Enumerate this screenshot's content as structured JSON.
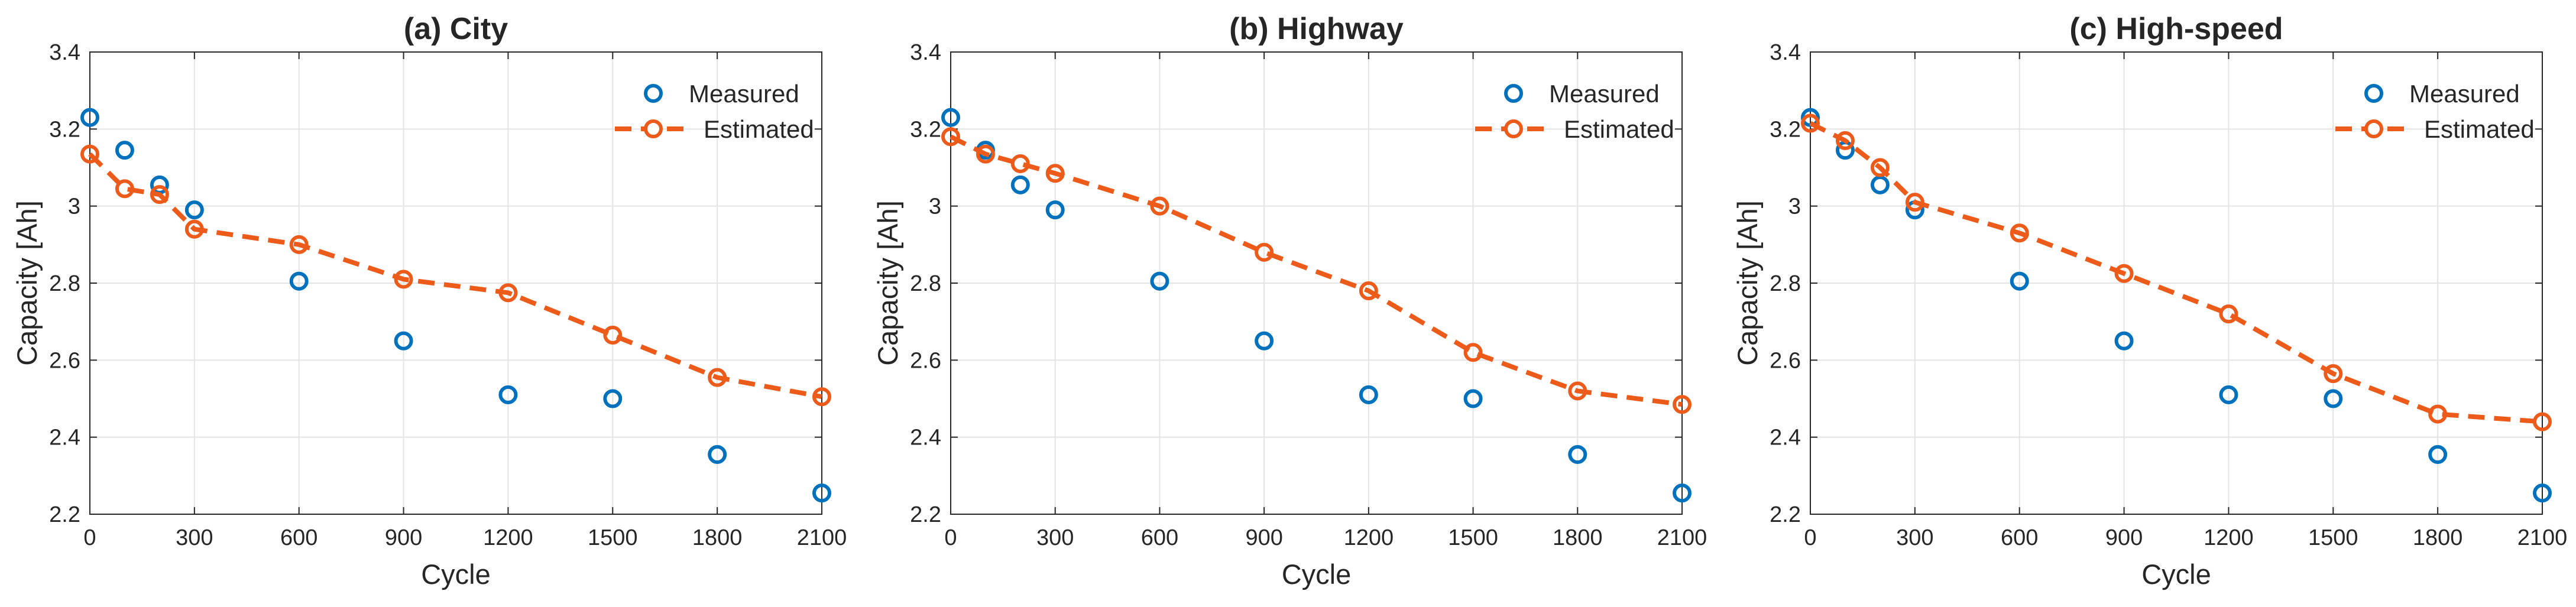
{
  "chart_data": [
    {
      "type": "line",
      "title": "(a) City",
      "xlabel": "Cycle",
      "ylabel": "Capacity [Ah]",
      "xlim": [
        0,
        2100
      ],
      "ylim": [
        2.2,
        3.4
      ],
      "xticks": [
        0,
        300,
        600,
        900,
        1200,
        1500,
        1800,
        2100
      ],
      "yticks": [
        2.2,
        2.4,
        2.6,
        2.8,
        3,
        3.2,
        3.4
      ],
      "xtick_labels": [
        "0",
        "300",
        "600",
        "900",
        "1200",
        "1500",
        "1800",
        "2100"
      ],
      "ytick_labels": [
        "2.2",
        "2.4",
        "2.6",
        "2.8",
        "3",
        "3.2",
        "3.4"
      ],
      "grid": true,
      "legend_position": "top-right",
      "series": [
        {
          "name": "Measured",
          "style": "markers",
          "color": "#0072BD",
          "x": [
            0,
            100,
            200,
            300,
            600,
            900,
            1200,
            1500,
            1800,
            2100
          ],
          "y": [
            3.23,
            3.145,
            3.055,
            2.99,
            2.805,
            2.65,
            2.51,
            2.5,
            2.355,
            2.255
          ]
        },
        {
          "name": "Estimated",
          "style": "dashed-line-markers",
          "color": "#ED5B1B",
          "x": [
            0,
            100,
            200,
            300,
            600,
            900,
            1200,
            1500,
            1800,
            2100
          ],
          "y": [
            3.135,
            3.045,
            3.03,
            2.94,
            2.9,
            2.81,
            2.775,
            2.665,
            2.555,
            2.505
          ]
        }
      ]
    },
    {
      "type": "line",
      "title": "(b) Highway",
      "xlabel": "Cycle",
      "ylabel": "Capacity [Ah]",
      "xlim": [
        0,
        2100
      ],
      "ylim": [
        2.2,
        3.4
      ],
      "xticks": [
        0,
        300,
        600,
        900,
        1200,
        1500,
        1800,
        2100
      ],
      "yticks": [
        2.2,
        2.4,
        2.6,
        2.8,
        3,
        3.2,
        3.4
      ],
      "xtick_labels": [
        "0",
        "300",
        "600",
        "900",
        "1200",
        "1500",
        "1800",
        "2100"
      ],
      "ytick_labels": [
        "2.2",
        "2.4",
        "2.6",
        "2.8",
        "3",
        "3.2",
        "3.4"
      ],
      "grid": true,
      "legend_position": "top-right",
      "series": [
        {
          "name": "Measured",
          "style": "markers",
          "color": "#0072BD",
          "x": [
            0,
            100,
            200,
            300,
            600,
            900,
            1200,
            1500,
            1800,
            2100
          ],
          "y": [
            3.23,
            3.145,
            3.055,
            2.99,
            2.805,
            2.65,
            2.51,
            2.5,
            2.355,
            2.255
          ]
        },
        {
          "name": "Estimated",
          "style": "dashed-line-markers",
          "color": "#ED5B1B",
          "x": [
            0,
            100,
            200,
            300,
            600,
            900,
            1200,
            1500,
            1800,
            2100
          ],
          "y": [
            3.18,
            3.135,
            3.11,
            3.085,
            3.0,
            2.88,
            2.78,
            2.62,
            2.52,
            2.485
          ]
        }
      ]
    },
    {
      "type": "line",
      "title": "(c) High-speed",
      "xlabel": "Cycle",
      "ylabel": "Capacity [Ah]",
      "xlim": [
        0,
        2100
      ],
      "ylim": [
        2.2,
        3.4
      ],
      "xticks": [
        0,
        300,
        600,
        900,
        1200,
        1500,
        1800,
        2100
      ],
      "yticks": [
        2.2,
        2.4,
        2.6,
        2.8,
        3,
        3.2,
        3.4
      ],
      "xtick_labels": [
        "0",
        "300",
        "600",
        "900",
        "1200",
        "1500",
        "1800",
        "2100"
      ],
      "ytick_labels": [
        "2.2",
        "2.4",
        "2.6",
        "2.8",
        "3",
        "3.2",
        "3.4"
      ],
      "grid": true,
      "legend_position": "top-right",
      "series": [
        {
          "name": "Measured",
          "style": "markers",
          "color": "#0072BD",
          "x": [
            0,
            100,
            200,
            300,
            600,
            900,
            1200,
            1500,
            1800,
            2100
          ],
          "y": [
            3.23,
            3.145,
            3.055,
            2.99,
            2.805,
            2.65,
            2.51,
            2.5,
            2.355,
            2.255
          ]
        },
        {
          "name": "Estimated",
          "style": "dashed-line-markers",
          "color": "#ED5B1B",
          "x": [
            0,
            100,
            200,
            300,
            600,
            900,
            1200,
            1500,
            1800,
            2100
          ],
          "y": [
            3.215,
            3.17,
            3.1,
            3.01,
            2.93,
            2.825,
            2.72,
            2.565,
            2.46,
            2.44
          ]
        }
      ]
    }
  ]
}
